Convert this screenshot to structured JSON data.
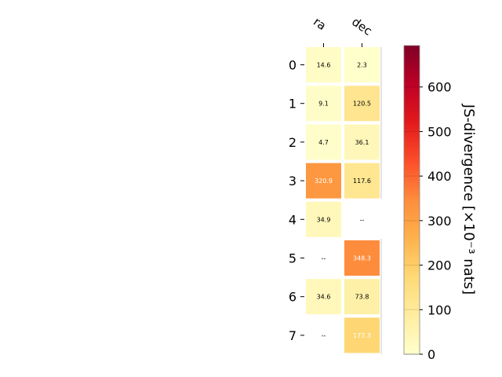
{
  "chart_data": {
    "type": "heatmap",
    "columns": [
      "ra",
      "dec"
    ],
    "rows": [
      "0",
      "1",
      "2",
      "3",
      "4",
      "5",
      "6",
      "7"
    ],
    "cells": [
      {
        "value": 14.6,
        "label": "14.6"
      },
      {
        "value": 2.3,
        "label": "2.3"
      },
      {
        "value": 9.1,
        "label": "9.1"
      },
      {
        "value": 120.5,
        "label": "120.5"
      },
      {
        "value": 4.7,
        "label": "4.7"
      },
      {
        "value": 36.1,
        "label": "36.1"
      },
      {
        "value": 320.9,
        "label": "320.9"
      },
      {
        "value": 117.6,
        "label": "117.6"
      },
      {
        "value": 34.9,
        "label": "34.9"
      },
      {
        "value": null,
        "label": "--"
      },
      {
        "value": null,
        "label": "--"
      },
      {
        "value": 348.3,
        "label": "348.3"
      },
      {
        "value": 34.6,
        "label": "34.6"
      },
      {
        "value": 73.8,
        "label": "73.8"
      },
      {
        "value": null,
        "label": "--"
      },
      {
        "value": 177.3,
        "label": "177.3"
      }
    ],
    "colorbar": {
      "label": "JS-divergence [×10⁻³ nats]",
      "range": [
        0,
        693
      ],
      "ticks": [
        "0",
        "100",
        "200",
        "300",
        "400",
        "500",
        "600"
      ],
      "colormap": "YlOrRd"
    }
  }
}
